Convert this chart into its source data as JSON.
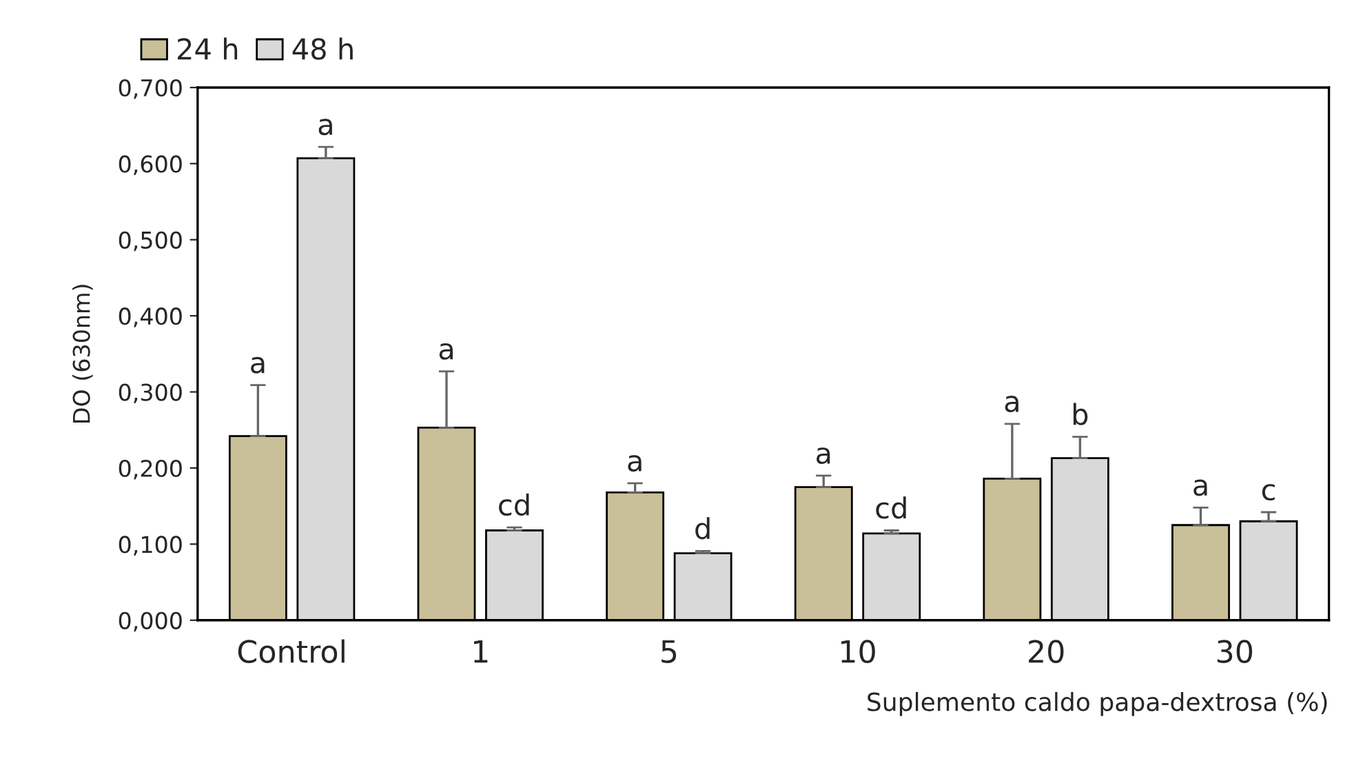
{
  "chart_data": {
    "type": "bar",
    "xlabel": "Suplemento caldo papa-dextrosa (%)",
    "ylabel": "DO (630nm)",
    "categories": [
      "Control",
      "1",
      "5",
      "10",
      "20",
      "30"
    ],
    "series": [
      {
        "name": "24 h",
        "color": "#c9bf98",
        "values": [
          0.242,
          0.253,
          0.168,
          0.175,
          0.186,
          0.125
        ],
        "errors": [
          [
            0.242,
            0.309
          ],
          [
            0.253,
            0.327
          ],
          [
            0.168,
            0.18
          ],
          [
            0.175,
            0.19
          ],
          [
            0.186,
            0.258
          ],
          [
            0.125,
            0.148
          ]
        ],
        "value_labels": [
          "a",
          "a",
          "a",
          "a",
          "a",
          "a"
        ]
      },
      {
        "name": "48 h",
        "color": "#d9d9d9",
        "values": [
          0.607,
          0.118,
          0.088,
          0.114,
          0.213,
          0.13
        ],
        "errors": [
          [
            0.607,
            0.622
          ],
          [
            0.118,
            0.122
          ],
          [
            0.088,
            0.091
          ],
          [
            0.114,
            0.118
          ],
          [
            0.213,
            0.241
          ],
          [
            0.13,
            0.142
          ]
        ],
        "value_labels": [
          "a",
          "cd",
          "d",
          "cd",
          "b",
          "c"
        ]
      }
    ],
    "ylim": [
      0,
      0.7
    ],
    "yticks": [
      {
        "value": 0,
        "label": "0,000"
      },
      {
        "value": 0.1,
        "label": "0,100"
      },
      {
        "value": 0.2,
        "label": "0,200"
      },
      {
        "value": 0.3,
        "label": "0,300"
      },
      {
        "value": 0.4,
        "label": "0,400"
      },
      {
        "value": 0.5,
        "label": "0,500"
      },
      {
        "value": 0.6,
        "label": "0,600"
      },
      {
        "value": 0.7,
        "label": "0,700"
      }
    ],
    "grid": false,
    "legend": "top left"
  }
}
